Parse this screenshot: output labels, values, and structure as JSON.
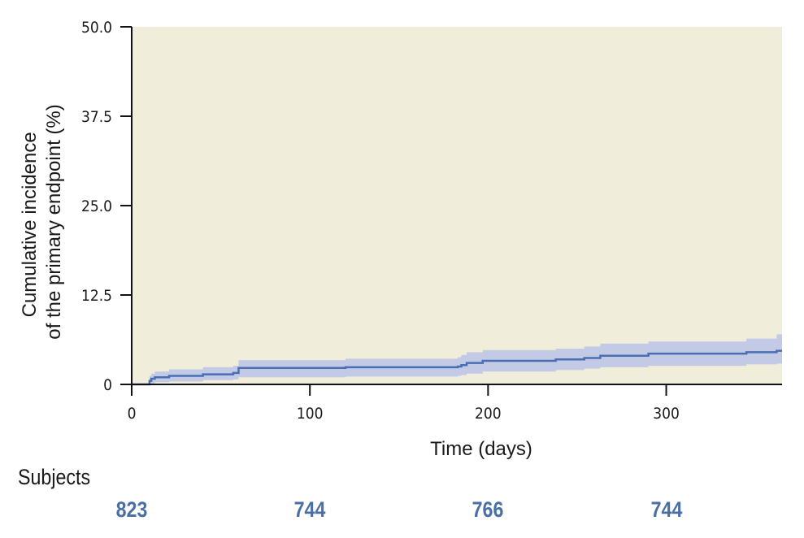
{
  "chart_data": {
    "type": "line",
    "title": "",
    "xlabel": "Time (days)",
    "ylabel_lines": [
      "Cumulative incidence",
      "of the primary endpoint (%)"
    ],
    "xlim": [
      0,
      365
    ],
    "ylim": [
      0,
      50
    ],
    "x_ticks": [
      0,
      100,
      200,
      300
    ],
    "y_ticks": [
      0,
      12.5,
      25,
      37.5,
      50
    ],
    "y_tick_labels": [
      "0",
      "12.5",
      "25.0",
      "37.5",
      "50.0"
    ],
    "grid": false,
    "plot_background": "#f0eddb",
    "series": [
      {
        "color": "#4a6fb0",
        "band_color": "#c2cae6",
        "step": true,
        "points": [
          [
            0,
            0
          ],
          [
            9,
            0
          ],
          [
            10,
            0.5
          ],
          [
            11,
            0.8
          ],
          [
            13,
            1.0
          ],
          [
            21,
            1.2
          ],
          [
            40,
            1.4
          ],
          [
            57,
            1.6
          ],
          [
            60,
            2.3
          ],
          [
            120,
            2.4
          ],
          [
            183,
            2.5
          ],
          [
            185,
            2.7
          ],
          [
            188,
            3.0
          ],
          [
            197,
            3.3
          ],
          [
            238,
            3.5
          ],
          [
            254,
            3.7
          ],
          [
            263,
            4.0
          ],
          [
            290,
            4.3
          ],
          [
            345,
            4.5
          ],
          [
            362,
            4.7
          ],
          [
            365,
            4.7
          ]
        ],
        "ci_lower": [
          [
            0,
            0
          ],
          [
            9,
            0
          ],
          [
            10,
            0
          ],
          [
            11,
            0.1
          ],
          [
            13,
            0.3
          ],
          [
            21,
            0.4
          ],
          [
            40,
            0.6
          ],
          [
            57,
            0.7
          ],
          [
            60,
            1.0
          ],
          [
            120,
            1.1
          ],
          [
            183,
            1.2
          ],
          [
            185,
            1.3
          ],
          [
            188,
            1.5
          ],
          [
            197,
            1.8
          ],
          [
            238,
            2.0
          ],
          [
            254,
            2.2
          ],
          [
            263,
            2.4
          ],
          [
            290,
            2.6
          ],
          [
            345,
            2.8
          ],
          [
            362,
            2.9
          ],
          [
            365,
            2.9
          ]
        ],
        "ci_upper": [
          [
            0,
            0
          ],
          [
            9,
            0
          ],
          [
            10,
            1.2
          ],
          [
            11,
            1.5
          ],
          [
            13,
            1.8
          ],
          [
            21,
            2.1
          ],
          [
            40,
            2.4
          ],
          [
            57,
            2.6
          ],
          [
            60,
            3.4
          ],
          [
            120,
            3.6
          ],
          [
            183,
            3.8
          ],
          [
            185,
            4.1
          ],
          [
            188,
            4.5
          ],
          [
            197,
            4.8
          ],
          [
            238,
            5.0
          ],
          [
            254,
            5.3
          ],
          [
            263,
            5.7
          ],
          [
            290,
            6.0
          ],
          [
            345,
            6.4
          ],
          [
            362,
            7.0
          ],
          [
            365,
            7.0
          ]
        ]
      }
    ]
  },
  "risk_table": {
    "label": "Subjects",
    "color": "#4a6fa5",
    "entries": [
      {
        "time": 0,
        "count": "823"
      },
      {
        "time": 100,
        "count": "744"
      },
      {
        "time": 200,
        "count": "766"
      },
      {
        "time": 300,
        "count": "744"
      }
    ]
  }
}
